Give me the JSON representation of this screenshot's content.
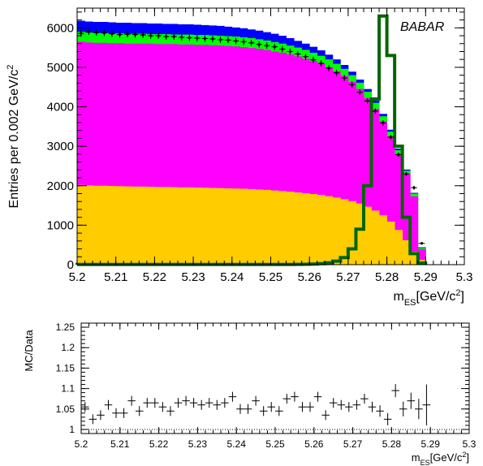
{
  "colors": {
    "yellow": "#ffcc00",
    "magenta": "#ff00ff",
    "green": "#00ff00",
    "blue": "#0000ff",
    "signal": "#006600",
    "data": "#000000"
  },
  "chart_data": [
    {
      "type": "histogram",
      "label": "BABAR",
      "xlabel": "m_ES[GeV/c^2]",
      "ylabel": "Entries per 0.002 GeV/c^2",
      "xlim": [
        5.2,
        5.3
      ],
      "ylim": [
        0,
        6500
      ],
      "bin_width": 0.002,
      "bin_starts": [
        5.2,
        5.202,
        5.204,
        5.206,
        5.208,
        5.21,
        5.212,
        5.214,
        5.216,
        5.218,
        5.22,
        5.222,
        5.224,
        5.226,
        5.228,
        5.23,
        5.232,
        5.234,
        5.236,
        5.238,
        5.24,
        5.242,
        5.244,
        5.246,
        5.248,
        5.25,
        5.252,
        5.254,
        5.256,
        5.258,
        5.26,
        5.262,
        5.264,
        5.266,
        5.268,
        5.27,
        5.272,
        5.274,
        5.276,
        5.278,
        5.28,
        5.282,
        5.284,
        5.286,
        5.288
      ],
      "xticks": [
        "5.2",
        "5.21",
        "5.22",
        "5.23",
        "5.24",
        "5.25",
        "5.26",
        "5.27",
        "5.28",
        "5.29",
        "5.3"
      ],
      "yticks": [
        "0",
        "1000",
        "2000",
        "3000",
        "4000",
        "5000",
        "6000"
      ],
      "stack": [
        {
          "color": "yellow",
          "values": [
            2020,
            2010,
            2000,
            2000,
            1995,
            1990,
            1985,
            1980,
            1980,
            1975,
            1970,
            1970,
            1965,
            1960,
            1960,
            1955,
            1950,
            1945,
            1940,
            1935,
            1930,
            1925,
            1915,
            1905,
            1895,
            1880,
            1865,
            1850,
            1830,
            1810,
            1790,
            1765,
            1735,
            1700,
            1660,
            1610,
            1550,
            1470,
            1370,
            1250,
            1090,
            880,
            620,
            330,
            120
          ]
        },
        {
          "color": "magenta",
          "values": [
            5650,
            5630,
            5620,
            5620,
            5610,
            5610,
            5600,
            5600,
            5600,
            5600,
            5590,
            5590,
            5590,
            5580,
            5580,
            5570,
            5570,
            5560,
            5550,
            5540,
            5530,
            5510,
            5490,
            5470,
            5440,
            5400,
            5370,
            5330,
            5280,
            5220,
            5160,
            5090,
            5000,
            4900,
            4780,
            4630,
            4450,
            4220,
            3950,
            3630,
            3250,
            2800,
            2300,
            1730,
            390
          ]
        },
        {
          "color": "green",
          "values": [
            5900,
            5880,
            5870,
            5870,
            5860,
            5860,
            5850,
            5850,
            5850,
            5840,
            5840,
            5840,
            5830,
            5830,
            5830,
            5820,
            5820,
            5810,
            5800,
            5790,
            5780,
            5760,
            5740,
            5710,
            5680,
            5640,
            5600,
            5550,
            5500,
            5440,
            5370,
            5290,
            5200,
            5090,
            4960,
            4800,
            4610,
            4380,
            4100,
            3760,
            3370,
            2900,
            2380,
            1800,
            420
          ]
        },
        {
          "color": "blue",
          "values": [
            6180,
            6160,
            6150,
            6150,
            6140,
            6130,
            6130,
            6120,
            6120,
            6110,
            6110,
            6100,
            6100,
            6090,
            6090,
            6080,
            6070,
            6060,
            6050,
            6030,
            6010,
            5990,
            5960,
            5930,
            5890,
            5850,
            5800,
            5740,
            5670,
            5600,
            5520,
            5430,
            5320,
            5200,
            5060,
            4890,
            4690,
            4450,
            4160,
            3820,
            3420,
            2940,
            2410,
            1820,
            440
          ]
        }
      ],
      "signal": {
        "color": "signal",
        "values": [
          5,
          5,
          5,
          5,
          5,
          5,
          5,
          5,
          5,
          5,
          5,
          5,
          5,
          5,
          5,
          5,
          5,
          5,
          5,
          5,
          5,
          5,
          5,
          5,
          5,
          5,
          5,
          6,
          7,
          10,
          15,
          25,
          45,
          90,
          180,
          400,
          900,
          2000,
          4200,
          6300,
          5300,
          3000,
          1200,
          280,
          40
        ]
      },
      "data": {
        "values": [
          5860,
          5900,
          5880,
          5870,
          5850,
          5830,
          5840,
          5830,
          5820,
          5800,
          5800,
          5780,
          5780,
          5760,
          5750,
          5740,
          5730,
          5720,
          5700,
          5690,
          5670,
          5650,
          5620,
          5580,
          5550,
          5520,
          5460,
          5400,
          5340,
          5270,
          5190,
          5100,
          4980,
          4860,
          4730,
          4560,
          4370,
          4150,
          3890,
          3590,
          3230,
          2790,
          2300,
          1950,
          540
        ],
        "errors": [
          80,
          80,
          80,
          80,
          80,
          80,
          80,
          80,
          80,
          80,
          80,
          80,
          80,
          80,
          80,
          80,
          80,
          80,
          80,
          80,
          80,
          80,
          80,
          80,
          80,
          80,
          80,
          80,
          80,
          80,
          80,
          80,
          80,
          80,
          80,
          80,
          70,
          70,
          70,
          70,
          60,
          60,
          50,
          50,
          30
        ]
      }
    },
    {
      "type": "scatter",
      "xlabel": "m_ES[GeV/c^2]",
      "ylabel": "MC/Data",
      "xlim": [
        5.2,
        5.3
      ],
      "ylim": [
        0.99,
        1.26
      ],
      "xticks": [
        "5.2",
        "5.21",
        "5.22",
        "5.23",
        "5.24",
        "5.25",
        "5.26",
        "5.27",
        "5.28",
        "5.29",
        "5.3"
      ],
      "yticks": [
        "1",
        "1.05",
        "1.1",
        "1.15",
        "1.2",
        "1.25"
      ],
      "reference_line": 1,
      "x": [
        5.201,
        5.203,
        5.205,
        5.207,
        5.209,
        5.211,
        5.213,
        5.215,
        5.217,
        5.219,
        5.221,
        5.223,
        5.225,
        5.227,
        5.229,
        5.231,
        5.233,
        5.235,
        5.237,
        5.239,
        5.241,
        5.243,
        5.245,
        5.247,
        5.249,
        5.251,
        5.253,
        5.255,
        5.257,
        5.259,
        5.261,
        5.263,
        5.265,
        5.267,
        5.269,
        5.271,
        5.273,
        5.275,
        5.277,
        5.279,
        5.281,
        5.283,
        5.285,
        5.287,
        5.289
      ],
      "y": [
        1.055,
        1.025,
        1.035,
        1.06,
        1.04,
        1.04,
        1.07,
        1.045,
        1.065,
        1.065,
        1.055,
        1.045,
        1.065,
        1.07,
        1.065,
        1.06,
        1.065,
        1.06,
        1.065,
        1.08,
        1.05,
        1.05,
        1.07,
        1.045,
        1.055,
        1.045,
        1.075,
        1.08,
        1.055,
        1.055,
        1.08,
        1.035,
        1.065,
        1.06,
        1.055,
        1.06,
        1.075,
        1.055,
        1.045,
        1.025,
        1.095,
        1.05,
        1.07,
        1.05,
        1.06
      ],
      "errors": [
        0.012,
        0.012,
        0.012,
        0.012,
        0.012,
        0.012,
        0.012,
        0.012,
        0.012,
        0.012,
        0.012,
        0.012,
        0.012,
        0.012,
        0.012,
        0.012,
        0.012,
        0.012,
        0.012,
        0.012,
        0.012,
        0.012,
        0.012,
        0.012,
        0.012,
        0.012,
        0.012,
        0.012,
        0.012,
        0.012,
        0.012,
        0.012,
        0.012,
        0.012,
        0.012,
        0.012,
        0.012,
        0.013,
        0.014,
        0.015,
        0.016,
        0.018,
        0.02,
        0.025,
        0.05
      ]
    }
  ]
}
